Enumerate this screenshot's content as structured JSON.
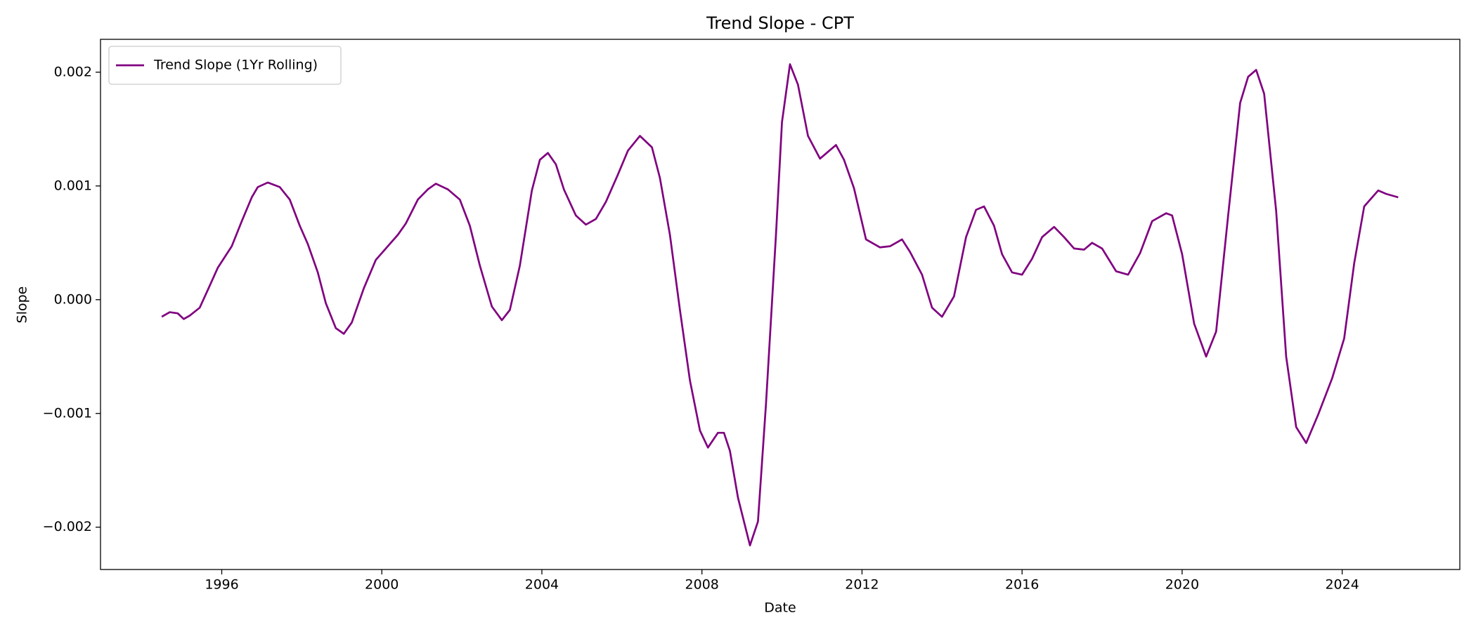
{
  "chart_data": {
    "type": "line",
    "title": "Trend Slope - CPT",
    "xlabel": "Date",
    "ylabel": "Slope",
    "legend": "upper left",
    "grid": false,
    "xlim": [
      1992.97,
      2026.94
    ],
    "xticks": [
      1996,
      2000,
      2004,
      2008,
      2012,
      2016,
      2020,
      2024
    ],
    "ylim": [
      -0.002372,
      0.002289
    ],
    "yticks": [
      {
        "value": -0.002,
        "label": "−0.002"
      },
      {
        "value": -0.001,
        "label": "−0.001"
      },
      {
        "value": 0,
        "label": "0.000"
      },
      0.001,
      0.002
    ],
    "x": [
      1994.5,
      1994.7,
      1994.9,
      1995.05,
      1995.2,
      1995.45,
      1995.67,
      1995.9,
      1996.25,
      1996.5,
      1996.75,
      1996.9,
      1997.15,
      1997.45,
      1997.7,
      1997.95,
      1998.15,
      1998.4,
      1998.6,
      1998.85,
      1999.05,
      1999.25,
      1999.55,
      1999.85,
      2000.15,
      2000.4,
      2000.6,
      2000.9,
      2001.15,
      2001.35,
      2001.65,
      2001.95,
      2002.2,
      2002.45,
      2002.75,
      2003.0,
      2003.2,
      2003.45,
      2003.75,
      2003.95,
      2004.15,
      2004.35,
      2004.55,
      2004.85,
      2005.1,
      2005.35,
      2005.6,
      2005.9,
      2006.15,
      2006.45,
      2006.75,
      2006.95,
      2007.2,
      2007.45,
      2007.7,
      2007.95,
      2008.15,
      2008.4,
      2008.55,
      2008.7,
      2008.9,
      2009.2,
      2009.4,
      2009.6,
      2009.85,
      2010.0,
      2010.2,
      2010.4,
      2010.65,
      2010.95,
      2011.15,
      2011.35,
      2011.55,
      2011.8,
      2012.1,
      2012.45,
      2012.7,
      2013.0,
      2013.2,
      2013.5,
      2013.75,
      2014.0,
      2014.3,
      2014.6,
      2014.85,
      2015.05,
      2015.3,
      2015.5,
      2015.75,
      2016.0,
      2016.25,
      2016.5,
      2016.8,
      2017.05,
      2017.3,
      2017.55,
      2017.75,
      2018.0,
      2018.35,
      2018.65,
      2018.95,
      2019.25,
      2019.6,
      2019.75,
      2020.0,
      2020.3,
      2020.6,
      2020.85,
      2021.15,
      2021.45,
      2021.65,
      2021.85,
      2022.05,
      2022.35,
      2022.6,
      2022.85,
      2023.1,
      2023.4,
      2023.75,
      2024.05,
      2024.3,
      2024.55,
      2024.9,
      2025.1,
      2025.4
    ],
    "series": [
      {
        "name": "Trend Slope (1Yr Rolling)",
        "color": "#800080",
        "values": [
          -0.00015,
          -0.00011,
          -0.00012,
          -0.00017,
          -0.00014,
          -7e-05,
          0.0001,
          0.00028,
          0.00047,
          0.00069,
          0.0009,
          0.00099,
          0.00103,
          0.00099,
          0.00088,
          0.00065,
          0.00049,
          0.00024,
          -3e-05,
          -0.00025,
          -0.0003,
          -0.0002,
          0.0001,
          0.00035,
          0.00047,
          0.00057,
          0.00067,
          0.00088,
          0.00097,
          0.00102,
          0.00097,
          0.00088,
          0.00065,
          0.0003,
          -6e-05,
          -0.00018,
          -9e-05,
          0.0003,
          0.00096,
          0.00123,
          0.00129,
          0.00119,
          0.00097,
          0.00074,
          0.00066,
          0.00071,
          0.00086,
          0.0011,
          0.00131,
          0.00144,
          0.00134,
          0.00107,
          0.00057,
          -9e-05,
          -0.00071,
          -0.00115,
          -0.0013,
          -0.00117,
          -0.00117,
          -0.00133,
          -0.00174,
          -0.00216,
          -0.00195,
          -0.00092,
          0.00057,
          0.00156,
          0.00207,
          0.00189,
          0.00144,
          0.00124,
          0.0013,
          0.00136,
          0.00123,
          0.00098,
          0.00053,
          0.00046,
          0.00047,
          0.00053,
          0.00042,
          0.00022,
          -7e-05,
          -0.00015,
          3e-05,
          0.00055,
          0.00079,
          0.00082,
          0.00065,
          0.0004,
          0.00024,
          0.00022,
          0.00036,
          0.00055,
          0.00064,
          0.00055,
          0.00045,
          0.00044,
          0.0005,
          0.00045,
          0.00025,
          0.00022,
          0.00041,
          0.00069,
          0.00076,
          0.00074,
          0.0004,
          -0.00021,
          -0.0005,
          -0.00028,
          0.00074,
          0.00173,
          0.00196,
          0.00202,
          0.00181,
          0.00078,
          -0.0005,
          -0.00112,
          -0.00126,
          -0.00101,
          -0.00069,
          -0.00034,
          0.00032,
          0.00082,
          0.00096,
          0.00093,
          0.0009
        ]
      }
    ]
  }
}
